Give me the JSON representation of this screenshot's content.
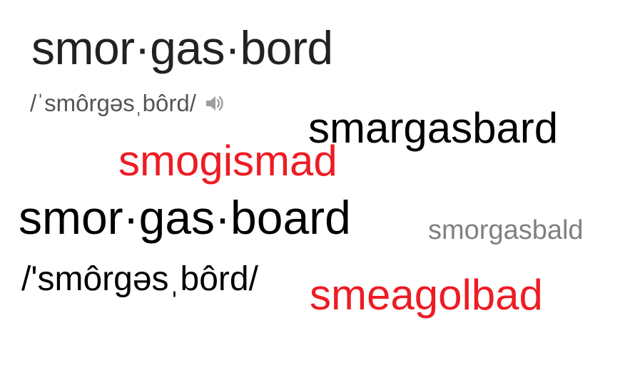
{
  "dictionary": {
    "headword": "smor·gas·bord",
    "pronunciation": "/ˈsmôrɡəsˌbôrd/",
    "speaker_icon": "speaker-icon",
    "speaker_color": "#9e9e9e"
  },
  "words": {
    "smargasbard": "smargasbard",
    "smogismad": "smogismad",
    "smorgasboard": "smor·gas·board",
    "smorgasbald": "smorgasbald",
    "pronunciation_large": "/'smôrɡəsˌbôrd/",
    "smeagolbad": "smeagolbad"
  },
  "colors": {
    "red": "#ed1c24",
    "black": "#000000",
    "gray": "#808080",
    "dark_gray": "#222222"
  }
}
